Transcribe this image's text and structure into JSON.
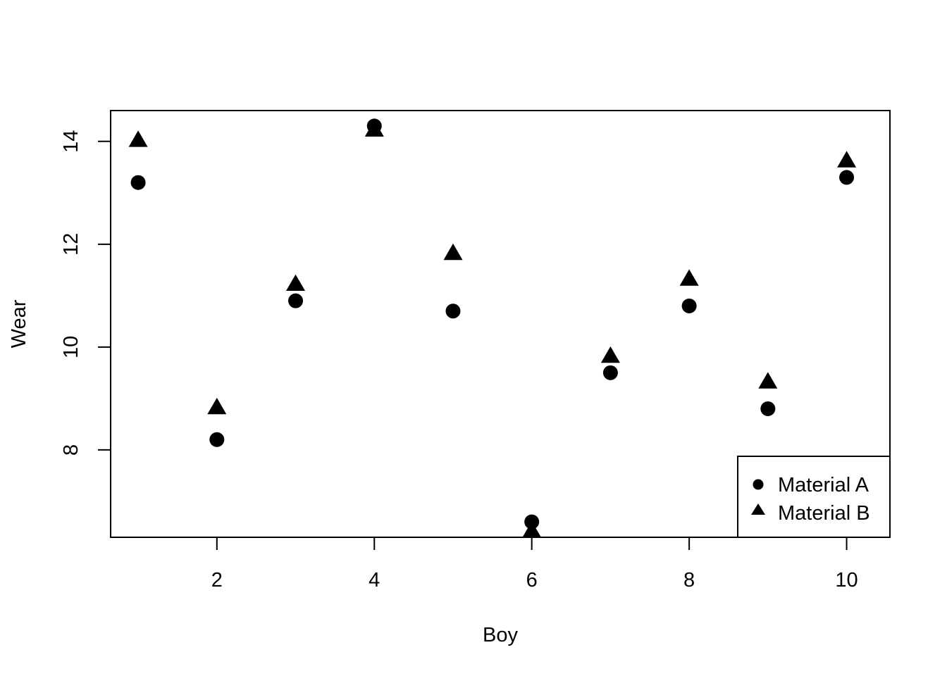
{
  "chart_data": {
    "type": "scatter",
    "title": "",
    "xlabel": "Boy",
    "ylabel": "Wear",
    "x": [
      1,
      2,
      3,
      4,
      5,
      6,
      7,
      8,
      9,
      10
    ],
    "xlim": [
      0.65,
      10.55
    ],
    "ylim": [
      6.3,
      14.6
    ],
    "x_ticks": [
      2,
      4,
      6,
      8,
      10
    ],
    "y_ticks": [
      8,
      10,
      12,
      14
    ],
    "grid": false,
    "legend_position": "bottom-right",
    "series": [
      {
        "name": "Material A",
        "marker": "circle",
        "color": "#000000",
        "values": [
          13.2,
          8.2,
          10.9,
          14.3,
          10.7,
          6.6,
          9.5,
          10.8,
          8.8,
          13.3
        ]
      },
      {
        "name": "Material B",
        "marker": "triangle",
        "color": "#000000",
        "values": [
          14.0,
          8.8,
          11.2,
          14.2,
          11.8,
          6.4,
          9.8,
          11.3,
          9.3,
          13.6
        ]
      }
    ]
  }
}
